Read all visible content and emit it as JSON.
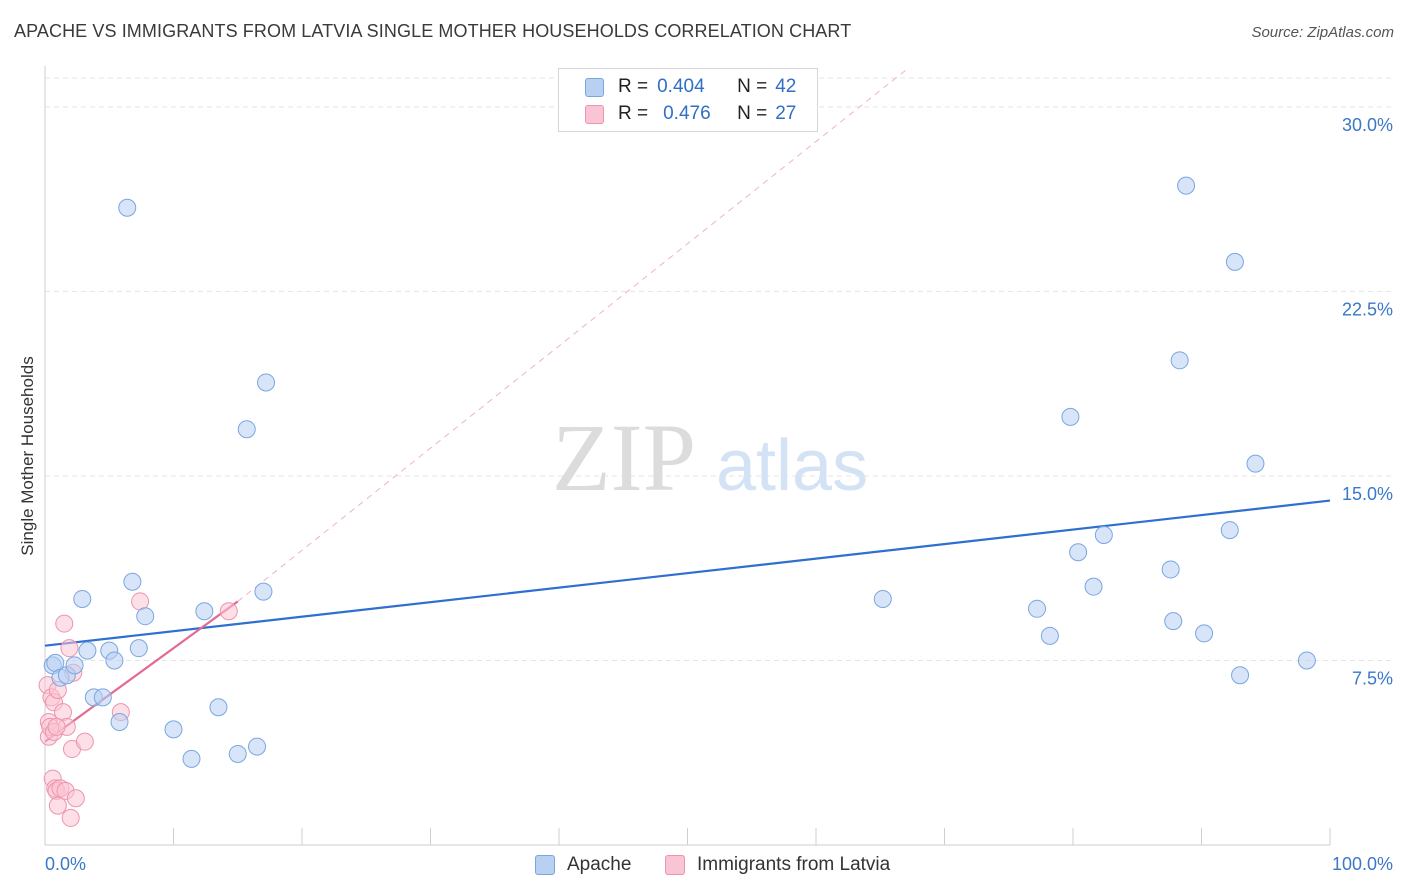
{
  "title": "APACHE VS IMMIGRANTS FROM LATVIA SINGLE MOTHER HOUSEHOLDS CORRELATION CHART",
  "source": "Source: ZipAtlas.com",
  "watermark": {
    "zip": "ZIP",
    "atlas": "atlas"
  },
  "legend_top": {
    "r_label": "R =",
    "n_label": "N =",
    "rows": [
      {
        "r": "0.404",
        "n": "42"
      },
      {
        "r": "0.476",
        "n": "27"
      }
    ]
  },
  "legend_bottom": [
    "Apache",
    "Immigrants from Latvia"
  ],
  "colors": {
    "apache_fill": "#b8d0f2",
    "apache_stroke": "#7aa6e0",
    "apache_line": "#2e6fd0",
    "latvia_fill": "#f9c4d3",
    "latvia_stroke": "#ef93ae",
    "latvia_line": "#e46a92",
    "grid": "#e4e4e4",
    "axis_label": "#3a78c8"
  },
  "chart_data": {
    "type": "scatter",
    "title": "APACHE VS IMMIGRANTS FROM LATVIA SINGLE MOTHER HOUSEHOLDS CORRELATION CHART",
    "xlabel": "",
    "ylabel": "Single Mother Households",
    "xlim": [
      0,
      100
    ],
    "ylim": [
      0,
      31.5
    ],
    "x_tick_labels": [
      "0.0%",
      "100.0%"
    ],
    "y_ticks": [
      7.5,
      15.0,
      22.5,
      30.0
    ],
    "y_tick_labels": [
      "7.5%",
      "15.0%",
      "22.5%",
      "30.0%"
    ],
    "grid": true,
    "legend_position": "top-center",
    "series": [
      {
        "name": "Apache",
        "R": 0.404,
        "N": 42,
        "trend": {
          "x": [
            0,
            100
          ],
          "y": [
            8.1,
            14.0
          ]
        },
        "points": [
          {
            "x": 0.6,
            "y": 7.3
          },
          {
            "x": 0.8,
            "y": 7.4
          },
          {
            "x": 1.2,
            "y": 6.8
          },
          {
            "x": 1.7,
            "y": 6.9
          },
          {
            "x": 2.3,
            "y": 7.3
          },
          {
            "x": 2.9,
            "y": 10.0
          },
          {
            "x": 3.3,
            "y": 7.9
          },
          {
            "x": 3.8,
            "y": 6.0
          },
          {
            "x": 4.5,
            "y": 6.0
          },
          {
            "x": 5.0,
            "y": 7.9
          },
          {
            "x": 5.4,
            "y": 7.5
          },
          {
            "x": 5.8,
            "y": 5.0
          },
          {
            "x": 6.8,
            "y": 10.7
          },
          {
            "x": 7.3,
            "y": 8.0
          },
          {
            "x": 7.8,
            "y": 9.3
          },
          {
            "x": 6.4,
            "y": 25.9
          },
          {
            "x": 10.0,
            "y": 4.7
          },
          {
            "x": 11.4,
            "y": 3.5
          },
          {
            "x": 12.4,
            "y": 9.5
          },
          {
            "x": 13.5,
            "y": 5.6
          },
          {
            "x": 15.0,
            "y": 3.7
          },
          {
            "x": 15.7,
            "y": 16.9
          },
          {
            "x": 16.5,
            "y": 4.0
          },
          {
            "x": 17.0,
            "y": 10.3
          },
          {
            "x": 17.2,
            "y": 18.8
          },
          {
            "x": 65.2,
            "y": 10.0
          },
          {
            "x": 77.2,
            "y": 9.6
          },
          {
            "x": 78.2,
            "y": 8.5
          },
          {
            "x": 79.8,
            "y": 17.4
          },
          {
            "x": 80.4,
            "y": 11.9
          },
          {
            "x": 81.6,
            "y": 10.5
          },
          {
            "x": 82.4,
            "y": 12.6
          },
          {
            "x": 87.6,
            "y": 11.2
          },
          {
            "x": 87.8,
            "y": 9.1
          },
          {
            "x": 88.8,
            "y": 26.8
          },
          {
            "x": 88.3,
            "y": 19.7
          },
          {
            "x": 90.2,
            "y": 8.6
          },
          {
            "x": 92.2,
            "y": 12.8
          },
          {
            "x": 92.6,
            "y": 23.7
          },
          {
            "x": 93.0,
            "y": 6.9
          },
          {
            "x": 94.2,
            "y": 15.5
          },
          {
            "x": 98.2,
            "y": 7.5
          }
        ]
      },
      {
        "name": "Immigrants from Latvia",
        "R": 0.476,
        "N": 27,
        "trend": {
          "x": [
            0,
            15
          ],
          "y": [
            4.2,
            9.9
          ]
        },
        "trend_extension": {
          "x": [
            15,
            67
          ],
          "y": [
            9.9,
            31.5
          ]
        },
        "points": [
          {
            "x": 0.2,
            "y": 6.5
          },
          {
            "x": 0.3,
            "y": 5.0
          },
          {
            "x": 0.3,
            "y": 4.4
          },
          {
            "x": 0.4,
            "y": 4.8
          },
          {
            "x": 0.5,
            "y": 6.0
          },
          {
            "x": 0.6,
            "y": 2.7
          },
          {
            "x": 0.7,
            "y": 5.8
          },
          {
            "x": 0.7,
            "y": 4.6
          },
          {
            "x": 0.8,
            "y": 2.3
          },
          {
            "x": 0.9,
            "y": 2.2
          },
          {
            "x": 1.0,
            "y": 6.3
          },
          {
            "x": 1.0,
            "y": 1.6
          },
          {
            "x": 1.2,
            "y": 2.3
          },
          {
            "x": 1.4,
            "y": 5.4
          },
          {
            "x": 1.5,
            "y": 9.0
          },
          {
            "x": 1.6,
            "y": 2.2
          },
          {
            "x": 1.7,
            "y": 4.8
          },
          {
            "x": 1.9,
            "y": 8.0
          },
          {
            "x": 2.0,
            "y": 1.1
          },
          {
            "x": 2.1,
            "y": 3.9
          },
          {
            "x": 2.4,
            "y": 1.9
          },
          {
            "x": 2.2,
            "y": 7.0
          },
          {
            "x": 3.1,
            "y": 4.2
          },
          {
            "x": 7.4,
            "y": 9.9
          },
          {
            "x": 5.9,
            "y": 5.4
          },
          {
            "x": 14.3,
            "y": 9.5
          },
          {
            "x": 0.9,
            "y": 4.8
          }
        ]
      }
    ]
  }
}
